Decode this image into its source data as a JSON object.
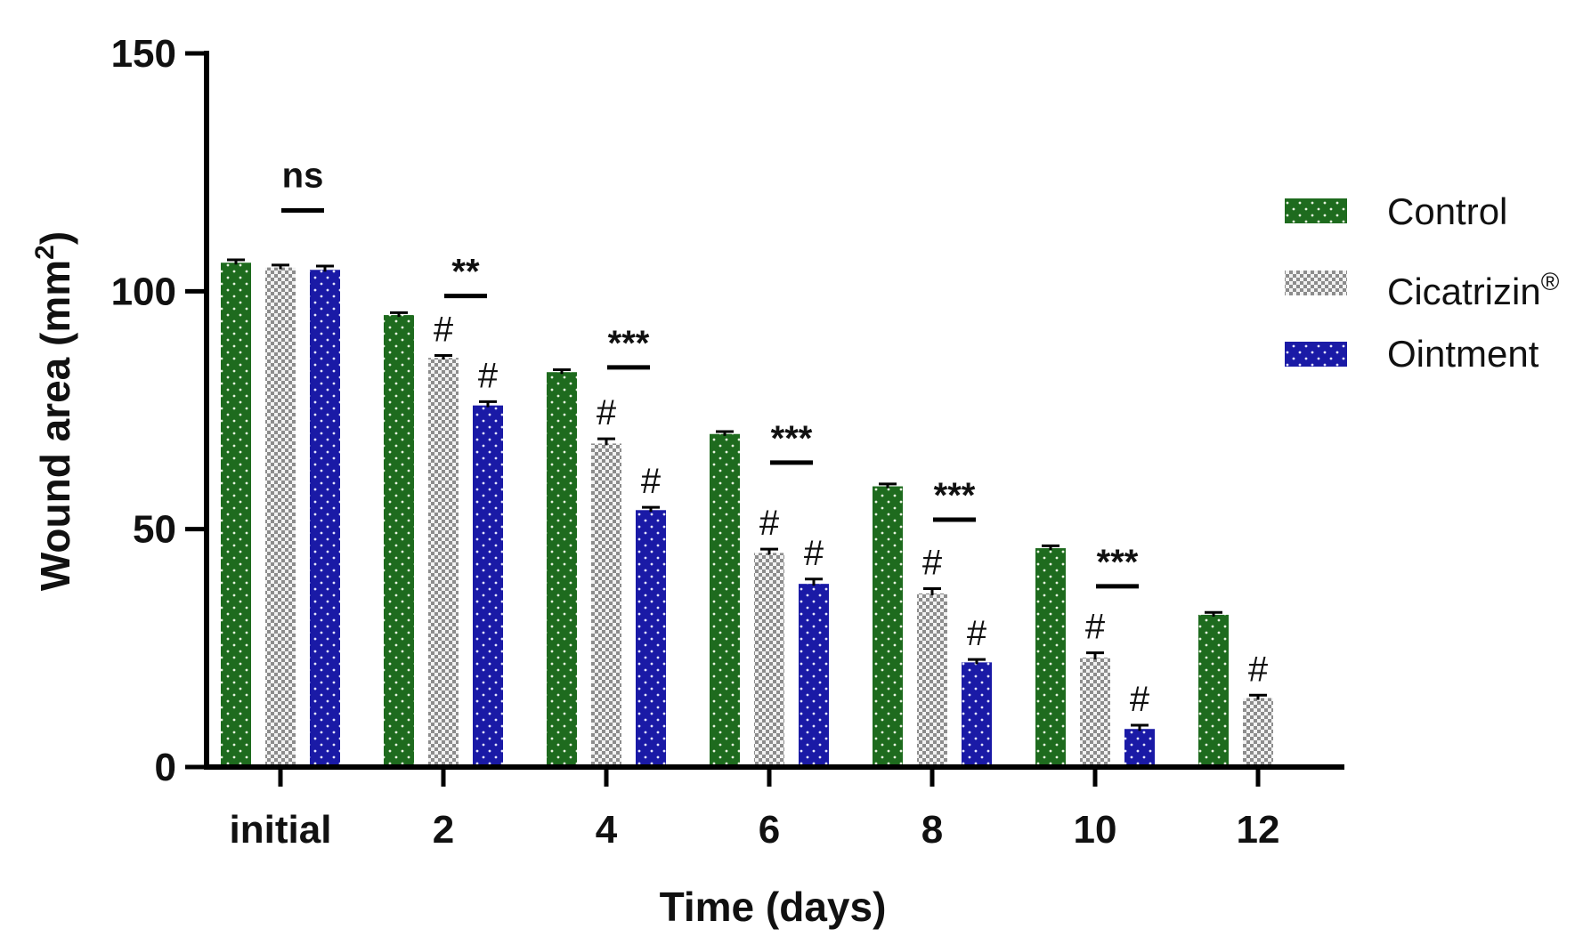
{
  "chart_data": {
    "type": "bar",
    "xlabel": "Time (days)",
    "ylabel": "Wound area (mm",
    "ylabel_superscript": "2",
    "ylabel_close": ")",
    "ylim": [
      0,
      150
    ],
    "yticks": [
      0,
      50,
      100,
      150
    ],
    "categories": [
      "initial",
      "2",
      "4",
      "6",
      "8",
      "10",
      "12"
    ],
    "series": [
      {
        "name": "Control",
        "color": "#1e6b1e",
        "pattern": "dots",
        "values": [
          106,
          95,
          83,
          70,
          59,
          46,
          32
        ],
        "errors": [
          0.6,
          0.5,
          0.5,
          0.5,
          0.5,
          0.5,
          0.5
        ]
      },
      {
        "name": "Cicatrizin",
        "name_superscript": "®",
        "color": "#9a9a9a",
        "pattern": "checker",
        "values": [
          105,
          86,
          68,
          45,
          36.5,
          23,
          14.5
        ],
        "errors": [
          0.5,
          0.5,
          1.0,
          0.8,
          1.0,
          1.0,
          0.6
        ]
      },
      {
        "name": "Ointment",
        "color": "#1a1aa6",
        "pattern": "dots",
        "values": [
          104.5,
          76,
          54,
          38.5,
          22,
          8,
          0
        ],
        "errors": [
          0.8,
          0.8,
          0.6,
          1.0,
          0.6,
          0.8,
          0
        ]
      }
    ],
    "significance": [
      {
        "category_index": 0,
        "label": "ns",
        "level": 117
      },
      {
        "category_index": 1,
        "label": "**",
        "level": 99
      },
      {
        "category_index": 2,
        "label": "***",
        "level": 84
      },
      {
        "category_index": 3,
        "label": "***",
        "level": 64
      },
      {
        "category_index": 4,
        "label": "***",
        "level": 52
      },
      {
        "category_index": 5,
        "label": "***",
        "level": 38
      }
    ],
    "hash_marks": [
      {
        "category_index": 1,
        "series_index": 1,
        "label": "#"
      },
      {
        "category_index": 1,
        "series_index": 2,
        "label": "#"
      },
      {
        "category_index": 2,
        "series_index": 1,
        "label": "#"
      },
      {
        "category_index": 2,
        "series_index": 2,
        "label": "#"
      },
      {
        "category_index": 3,
        "series_index": 1,
        "label": "#"
      },
      {
        "category_index": 3,
        "series_index": 2,
        "label": "#"
      },
      {
        "category_index": 4,
        "series_index": 1,
        "label": "#"
      },
      {
        "category_index": 4,
        "series_index": 2,
        "label": "#"
      },
      {
        "category_index": 5,
        "series_index": 1,
        "label": "#"
      },
      {
        "category_index": 5,
        "series_index": 2,
        "label": "#"
      },
      {
        "category_index": 6,
        "series_index": 1,
        "label": "#"
      }
    ],
    "legend_position": "right"
  }
}
